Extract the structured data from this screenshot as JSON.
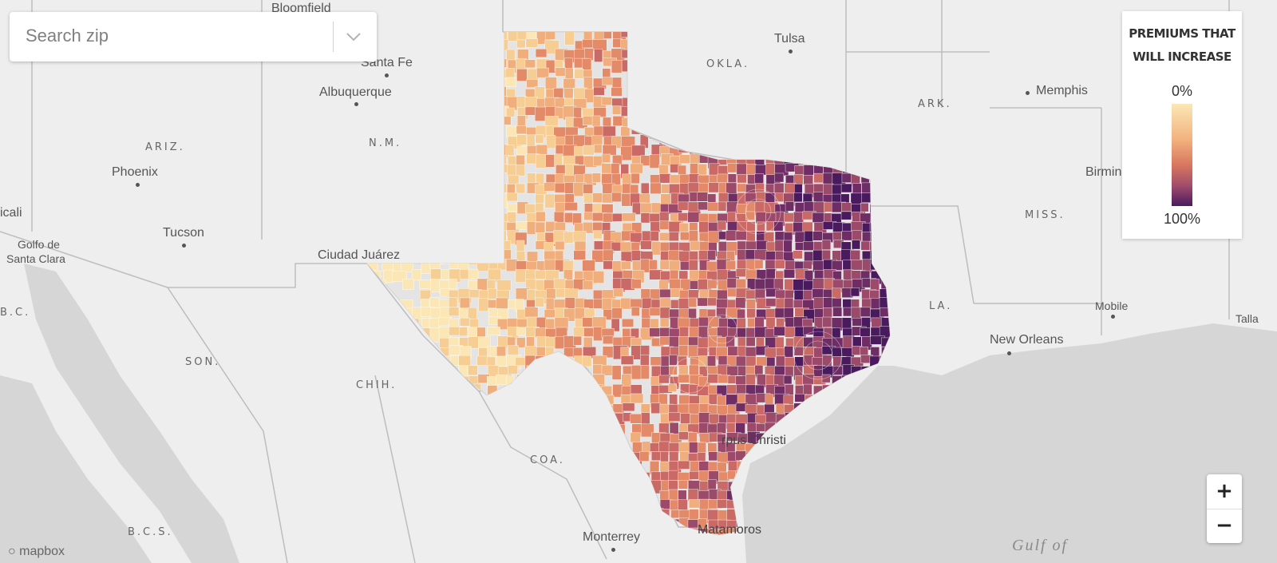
{
  "search": {
    "placeholder": "Search zip"
  },
  "legend": {
    "title_line1": "PREMIUMS THAT",
    "title_line2": "WILL INCREASE",
    "min_label": "0%",
    "max_label": "100%",
    "color_low": "#fbe7b5",
    "color_mid": "#e0866a",
    "color_high": "#4a1a5e"
  },
  "zoom": {
    "in_label": "+",
    "out_label": "−"
  },
  "attribution": "mapbox",
  "map": {
    "cities": {
      "bloomfield": "Bloomfield",
      "tulsa": "Tulsa",
      "santa_fe": "Santa Fe",
      "albuquerque": "Albuquerque",
      "memphis": "Memphis",
      "phoenix": "Phoenix",
      "tucson": "Tucson",
      "mexicali": "icali",
      "birmingham": "Birmingham",
      "ciudad_juarez": "Ciudad Juárez",
      "mobile": "Mobile",
      "new_orleans": "New Orleans",
      "monterrey": "Monterrey",
      "golfo_line1": "Golfo de",
      "golfo_line2": "Santa Clara",
      "corpus": "rpus Christi",
      "matamoros": "Matamoros",
      "tall": "Talla"
    },
    "regions": {
      "okla": "OKLA.",
      "ark": "ARK.",
      "ariz": "ARIZ.",
      "nm": "N.M.",
      "miss": "MISS.",
      "la": "LA.",
      "son": "SON.",
      "chih": "CHIH.",
      "coa": "COA.",
      "bcs": "B.C.S.",
      "bc": "B.C."
    },
    "water": {
      "gulf": "Gulf of"
    }
  },
  "colors": {
    "land": "#eeeeee",
    "water": "#d6d6d6",
    "texas_base": "#e4e4e4",
    "border": "#bdbdbd"
  }
}
